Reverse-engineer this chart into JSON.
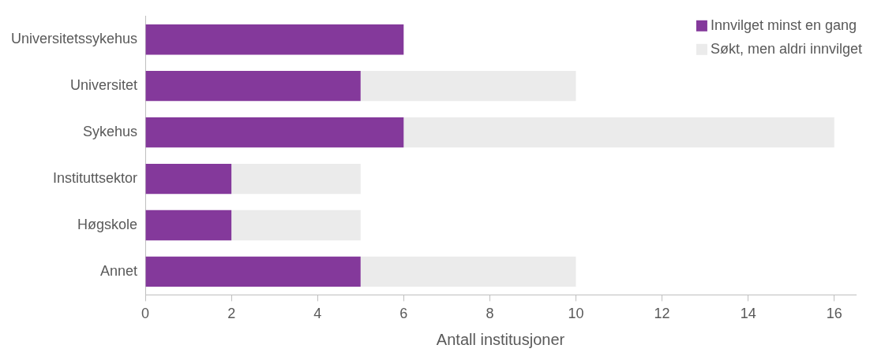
{
  "chart_data": {
    "type": "bar",
    "orientation": "horizontal",
    "stacked": true,
    "xlabel": "Antall institusjoner",
    "categories": [
      "Universitetssykehus",
      "Universitet",
      "Sykehus",
      "Instituttsektor",
      "Høgskole",
      "Annet"
    ],
    "series": [
      {
        "name": "Innvilget minst en gang",
        "color": "#84399b",
        "values": [
          6,
          5,
          6,
          2,
          2,
          5
        ]
      },
      {
        "name": "Søkt, men aldri innvilget",
        "color": "#ebebeb",
        "values": [
          0,
          5,
          10,
          3,
          3,
          5
        ]
      }
    ],
    "xlim": [
      0,
      16.5
    ],
    "xticks": [
      0,
      2,
      4,
      6,
      8,
      10,
      12,
      14,
      16
    ],
    "grid": false,
    "legend": "top right"
  }
}
